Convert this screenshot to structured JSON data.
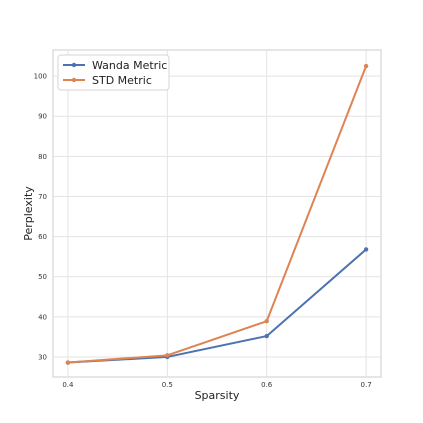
{
  "chart_data": {
    "type": "line",
    "title": "",
    "xlabel": "Sparsity",
    "ylabel": "Perplexity",
    "x": [
      0.4,
      0.5,
      0.6,
      0.7
    ],
    "x_tick_labels": [
      "0.4",
      "0.5",
      "0.6",
      "0.7"
    ],
    "y_ticks": [
      30,
      40,
      50,
      60,
      70,
      80,
      90,
      100
    ],
    "y_tick_labels": [
      "30",
      "40",
      "50",
      "60",
      "70",
      "80",
      "90",
      "100"
    ],
    "xlim": [
      0.385,
      0.715
    ],
    "ylim": [
      25,
      106.5
    ],
    "grid": true,
    "legend": "top-left",
    "series": [
      {
        "name": "Wanda Metric",
        "color": "#4c72b0",
        "values": [
          28.6,
          30.0,
          35.2,
          56.8
        ]
      },
      {
        "name": "STD Metric",
        "color": "#dd8452",
        "values": [
          28.6,
          30.4,
          38.9,
          102.5
        ]
      }
    ]
  }
}
